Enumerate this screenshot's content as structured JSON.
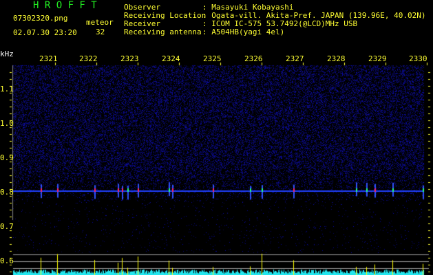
{
  "header": {
    "title": "H R O F F T",
    "filename": "07302320.png",
    "datetime": "02.07.30 23:20",
    "meteor_label": "meteor",
    "meteor_count": "32"
  },
  "info": [
    {
      "label": "Observer",
      "value": ": Masayuki Kobayashi"
    },
    {
      "label": "Receiving Location",
      "value": ": Ogata-vill. Akita-Pref. JAPAN (139.96E, 40.02N)"
    },
    {
      "label": "Receiver",
      "value": ": ICOM IC-575 53.7492(@LCD)MHz USB"
    },
    {
      "label": "Receiving antenna",
      "value": ": A504HB(yagi 4el)"
    }
  ],
  "axis": {
    "y_unit": "kHz",
    "x_ticks": [
      "2321",
      "2322",
      "2323",
      "2324",
      "2325",
      "2326",
      "2327",
      "2328",
      "2329",
      "2330"
    ],
    "y_ticks": [
      "1.1",
      "1.0",
      "0.9",
      "0.8",
      "0.7",
      "0.6"
    ]
  },
  "colors": {
    "text": "#ffff33",
    "title": "#22ee22",
    "noise": "#1a1a9a",
    "histogram": "#22e6ee",
    "meteor_spike": "#ffff00"
  }
}
